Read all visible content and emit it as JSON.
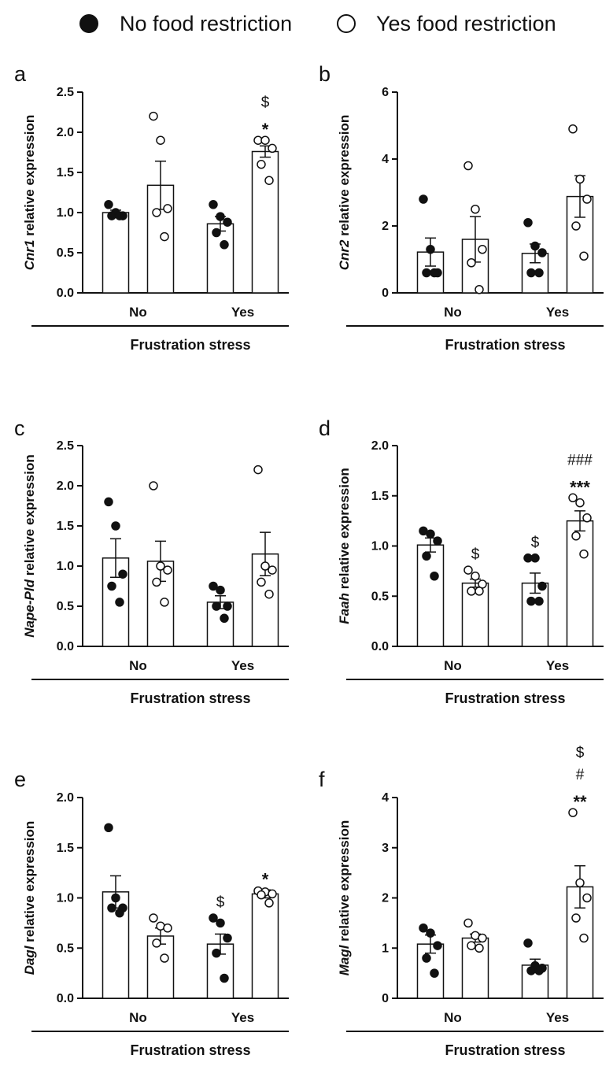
{
  "legend": {
    "no_label": "No food restriction",
    "yes_label": "Yes food restriction"
  },
  "colors": {
    "no_fill": "#111111",
    "yes_fill": "#ffffff",
    "stroke": "#111111"
  },
  "chart_data": [
    {
      "panel": "a",
      "gene": "Cnr1",
      "ylabel_suffix": " relative expression",
      "type": "bar",
      "ylim": [
        0,
        2.5
      ],
      "yticks": [
        "0.0",
        "0.5",
        "1.0",
        "1.5",
        "2.0",
        "2.5"
      ],
      "categories": [
        "No",
        "Yes"
      ],
      "xlabel": "Frustration stress",
      "series": [
        {
          "name": "No food restriction",
          "values": [
            1.0,
            0.86
          ],
          "sem": [
            0.03,
            0.09
          ],
          "points": [
            [
              1.1,
              1.0,
              0.96,
              0.96,
              0.96
            ],
            [
              1.1,
              0.95,
              0.88,
              0.75,
              0.6
            ]
          ]
        },
        {
          "name": "Yes food restriction",
          "values": [
            1.34,
            1.76
          ],
          "sem": [
            0.3,
            0.07
          ],
          "points": [
            [
              2.2,
              1.9,
              1.05,
              1.0,
              0.7
            ],
            [
              1.9,
              1.9,
              1.8,
              1.6,
              1.4
            ]
          ]
        }
      ],
      "annotations": [
        {
          "group": 1,
          "series": 1,
          "lines": [
            "$",
            "*"
          ]
        }
      ]
    },
    {
      "panel": "b",
      "gene": "Cnr2",
      "ylabel_suffix": " relative expression",
      "type": "bar",
      "ylim": [
        0,
        6
      ],
      "yticks": [
        "0",
        "2",
        "4",
        "6"
      ],
      "categories": [
        "No",
        "Yes"
      ],
      "xlabel": "Frustration stress",
      "series": [
        {
          "name": "No food restriction",
          "values": [
            1.22,
            1.18
          ],
          "sem": [
            0.42,
            0.28
          ],
          "points": [
            [
              2.8,
              1.3,
              0.6,
              0.6,
              0.6
            ],
            [
              2.1,
              1.4,
              1.2,
              0.6,
              0.6
            ]
          ]
        },
        {
          "name": "Yes food restriction",
          "values": [
            1.6,
            2.88
          ],
          "sem": [
            0.68,
            0.62
          ],
          "points": [
            [
              3.8,
              2.5,
              1.3,
              0.9,
              0.1
            ],
            [
              4.9,
              3.4,
              2.8,
              2.0,
              1.1
            ]
          ]
        }
      ],
      "annotations": []
    },
    {
      "panel": "c",
      "gene": "Nape-Pld",
      "ylabel_suffix": " relative expression",
      "type": "bar",
      "ylim": [
        0,
        2.5
      ],
      "yticks": [
        "0.0",
        "0.5",
        "1.0",
        "1.5",
        "2.0",
        "2.5"
      ],
      "categories": [
        "No",
        "Yes"
      ],
      "xlabel": "Frustration stress",
      "series": [
        {
          "name": "No food restriction",
          "values": [
            1.1,
            0.55
          ],
          "sem": [
            0.24,
            0.08
          ],
          "points": [
            [
              1.8,
              1.5,
              0.9,
              0.75,
              0.55
            ],
            [
              0.75,
              0.7,
              0.5,
              0.5,
              0.35
            ]
          ]
        },
        {
          "name": "Yes food restriction",
          "values": [
            1.06,
            1.15
          ],
          "sem": [
            0.25,
            0.27
          ],
          "points": [
            [
              2.0,
              1.0,
              0.95,
              0.8,
              0.55
            ],
            [
              2.2,
              1.0,
              0.95,
              0.8,
              0.65
            ]
          ]
        }
      ],
      "annotations": []
    },
    {
      "panel": "d",
      "gene": "Faah",
      "ylabel_suffix": " relative expression",
      "type": "bar",
      "ylim": [
        0,
        2.0
      ],
      "yticks": [
        "0.0",
        "0.5",
        "1.0",
        "1.5",
        "2.0"
      ],
      "categories": [
        "No",
        "Yes"
      ],
      "xlabel": "Frustration stress",
      "series": [
        {
          "name": "No food restriction",
          "values": [
            1.01,
            0.63
          ],
          "sem": [
            0.07,
            0.1
          ],
          "points": [
            [
              1.15,
              1.12,
              1.05,
              0.9,
              0.7
            ],
            [
              0.88,
              0.88,
              0.6,
              0.45,
              0.45
            ]
          ]
        },
        {
          "name": "Yes food restriction",
          "values": [
            0.63,
            1.25
          ],
          "sem": [
            0.04,
            0.1
          ],
          "points": [
            [
              0.76,
              0.7,
              0.62,
              0.55,
              0.55
            ],
            [
              1.48,
              1.43,
              1.28,
              1.1,
              0.92
            ]
          ]
        }
      ],
      "annotations": [
        {
          "group": 0,
          "series": 1,
          "lines": [
            "$"
          ]
        },
        {
          "group": 1,
          "series": 0,
          "lines": [
            "$"
          ]
        },
        {
          "group": 1,
          "series": 1,
          "lines": [
            "###",
            "***"
          ]
        }
      ]
    },
    {
      "panel": "e",
      "gene": "Dagl",
      "ylabel_suffix": " relative expression",
      "type": "bar",
      "ylim": [
        0,
        2.0
      ],
      "yticks": [
        "0.0",
        "0.5",
        "1.0",
        "1.5",
        "2.0"
      ],
      "categories": [
        "No",
        "Yes"
      ],
      "xlabel": "Frustration stress",
      "series": [
        {
          "name": "No food restriction",
          "values": [
            1.06,
            0.54
          ],
          "sem": [
            0.16,
            0.1
          ],
          "points": [
            [
              1.7,
              1.0,
              0.9,
              0.9,
              0.85
            ],
            [
              0.8,
              0.75,
              0.6,
              0.45,
              0.2
            ]
          ]
        },
        {
          "name": "Yes food restriction",
          "values": [
            0.62,
            1.04
          ],
          "sem": [
            0.08,
            0.04
          ],
          "points": [
            [
              0.8,
              0.72,
              0.7,
              0.55,
              0.4
            ],
            [
              1.07,
              1.06,
              1.04,
              1.03,
              0.95
            ]
          ]
        }
      ],
      "annotations": [
        {
          "group": 1,
          "series": 0,
          "lines": [
            "$"
          ]
        },
        {
          "group": 1,
          "series": 1,
          "lines": [
            "*"
          ]
        }
      ]
    },
    {
      "panel": "f",
      "gene": "Magl",
      "ylabel_suffix": " relative expression",
      "type": "bar",
      "ylim": [
        0,
        4
      ],
      "yticks": [
        "0",
        "1",
        "2",
        "3",
        "4"
      ],
      "categories": [
        "No",
        "Yes"
      ],
      "xlabel": "Frustration stress",
      "series": [
        {
          "name": "No food restriction",
          "values": [
            1.08,
            0.66
          ],
          "sem": [
            0.18,
            0.12
          ],
          "points": [
            [
              1.4,
              1.3,
              1.05,
              0.8,
              0.5
            ],
            [
              1.1,
              0.65,
              0.6,
              0.55,
              0.55
            ]
          ]
        },
        {
          "name": "Yes food restriction",
          "values": [
            1.2,
            2.22
          ],
          "sem": [
            0.08,
            0.42
          ],
          "points": [
            [
              1.5,
              1.25,
              1.2,
              1.05,
              1.0
            ],
            [
              3.7,
              2.3,
              2.0,
              1.6,
              1.2
            ]
          ]
        }
      ],
      "annotations": [
        {
          "group": 1,
          "series": 1,
          "lines": [
            "$",
            "#",
            "**"
          ]
        }
      ]
    }
  ]
}
